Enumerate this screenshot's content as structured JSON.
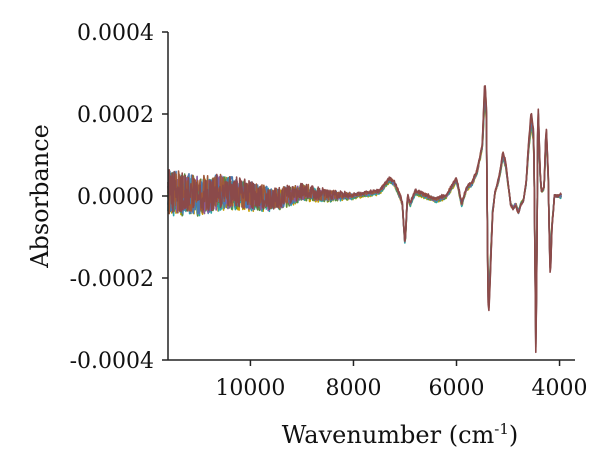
{
  "chart_data": {
    "type": "line",
    "title": "",
    "xlabel": "Wavenumber (cm",
    "xlabel_sup": "-1",
    "xlabel_close": ")",
    "ylabel": "Absorbance",
    "xlim": [
      11600,
      3700
    ],
    "ylim": [
      -0.0004,
      0.0004
    ],
    "x_reversed": true,
    "grid": false,
    "legend": "none",
    "x_ticks": [
      {
        "value": 10000,
        "label": "10000"
      },
      {
        "value": 8000,
        "label": "8000"
      },
      {
        "value": 6000,
        "label": "6000"
      },
      {
        "value": 4000,
        "label": "4000"
      }
    ],
    "y_ticks": [
      {
        "value": 0.0004,
        "label": "0.0004"
      },
      {
        "value": 0.0002,
        "label": "0.0002"
      },
      {
        "value": 0.0,
        "label": "0.0000"
      },
      {
        "value": -0.0002,
        "label": "-0.0002"
      },
      {
        "value": -0.0004,
        "label": "-0.0004"
      }
    ],
    "series_colors": [
      "#c8a000",
      "#2aa6a8",
      "#5a8a3a",
      "#8a5aa0",
      "#4a7ab0",
      "#a05a3a",
      "#8b4a4a"
    ],
    "series": [
      {
        "x": [
          11600,
          11000,
          10500,
          10000,
          9500,
          9000,
          8500,
          8000,
          7500,
          7300,
          7200,
          7100,
          7050,
          7000,
          6950,
          6900,
          6800,
          6600,
          6400,
          6200,
          6100,
          6000,
          5950,
          5900,
          5800,
          5700,
          5600,
          5500,
          5450,
          5420,
          5400,
          5380,
          5350,
          5300,
          5250,
          5200,
          5150,
          5100,
          5050,
          5000,
          4950,
          4900,
          4850,
          4800,
          4750,
          4700,
          4650,
          4600,
          4550,
          4500,
          4480,
          4460,
          4440,
          4420,
          4400,
          4380,
          4350,
          4300,
          4260,
          4220,
          4200,
          4180,
          4150,
          4100,
          4060,
          4030,
          4000
        ],
        "y": [
          1e-05,
          0.0,
          1e-05,
          0.0,
          -1e-05,
          1e-05,
          0.0,
          0.0,
          1e-05,
          4e-05,
          3e-05,
          0.0,
          -2e-05,
          -0.00012,
          0.0,
          -2e-05,
          1e-05,
          0.0,
          -1e-05,
          0.0,
          2e-05,
          4e-05,
          1e-05,
          -2e-05,
          2e-05,
          3e-05,
          6e-05,
          0.00012,
          0.00026,
          0.0002,
          -0.0001,
          -0.00028,
          -0.0002,
          -4e-05,
          1e-05,
          3e-05,
          6e-05,
          0.0001,
          8e-05,
          3e-05,
          -2e-05,
          -3e-05,
          -2e-05,
          -4e-05,
          -2e-05,
          -1e-05,
          3e-05,
          0.00012,
          0.00019,
          0.00014,
          -0.0001,
          -0.00035,
          -0.00015,
          0.00022,
          0.00015,
          6e-05,
          1e-05,
          2e-05,
          0.00016,
          5e-05,
          -8e-05,
          -0.00019,
          -8e-05,
          0.0,
          0.0,
          0.0,
          0.0
        ]
      }
    ]
  }
}
